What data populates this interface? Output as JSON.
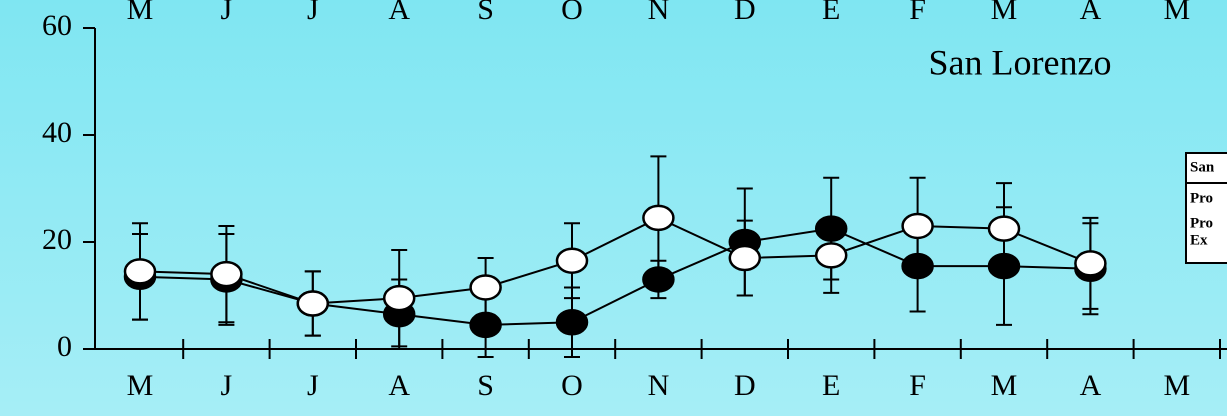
{
  "chart_data": {
    "type": "line",
    "title": "San Lorenzo",
    "categories": [
      "M",
      "J",
      "J",
      "A",
      "S",
      "O",
      "N",
      "D",
      "E",
      "F",
      "M",
      "A",
      "M"
    ],
    "series": [
      {
        "color": "#000000",
        "values": [
          13.5,
          13,
          8.5,
          6.5,
          4.5,
          5,
          13,
          20,
          22.5,
          15.5,
          15.5,
          15,
          null
        ],
        "errors": [
          8,
          8.5,
          6,
          6.5,
          6,
          6.5,
          3.5,
          10,
          9.5,
          8.5,
          11,
          8.5,
          null
        ]
      },
      {
        "color": "#ffffff",
        "values": [
          14.5,
          14,
          8.5,
          9.5,
          11.5,
          16.5,
          24.5,
          17,
          17.5,
          23,
          22.5,
          16,
          null
        ],
        "errors": [
          9,
          9,
          6,
          9,
          5.5,
          7,
          11.5,
          7,
          7,
          9,
          8.5,
          8.5,
          null
        ]
      }
    ],
    "legend_items": [
      "San",
      "Pro",
      "Pro",
      "Ex"
    ],
    "ylim": [
      0,
      60
    ],
    "yticks": [
      0,
      20,
      40,
      60
    ]
  }
}
